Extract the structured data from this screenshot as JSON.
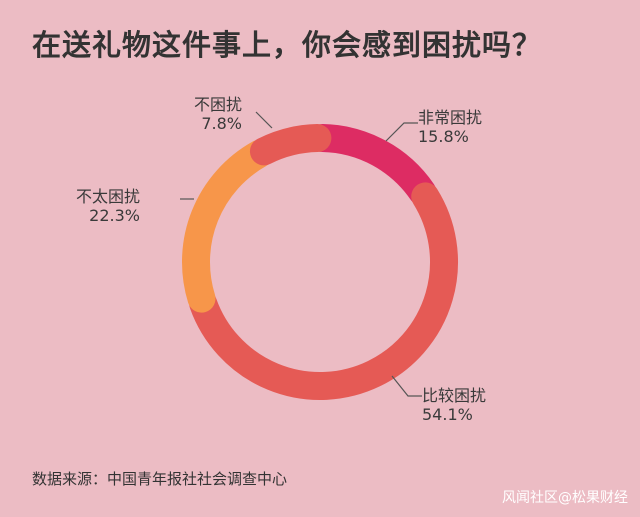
{
  "chart_data": {
    "type": "pie",
    "title": "在送礼物这件事上，你会感到困扰吗？",
    "slices": [
      {
        "label": "非常困扰",
        "value": 15.8,
        "value_label": "15.8%",
        "color": "#dd2c63"
      },
      {
        "label": "比较困扰",
        "value": 54.1,
        "value_label": "54.1%",
        "color": "#e55a55"
      },
      {
        "label": "不太困扰",
        "value": 22.3,
        "value_label": "22.3%",
        "color": "#f7964a"
      },
      {
        "label": "不困扰",
        "value": 7.8,
        "value_label": "7.8%",
        "color": "#e55a55"
      }
    ]
  },
  "source": "数据来源：中国青年报社社会调查中心",
  "watermark": "风闻社区@松果财经"
}
